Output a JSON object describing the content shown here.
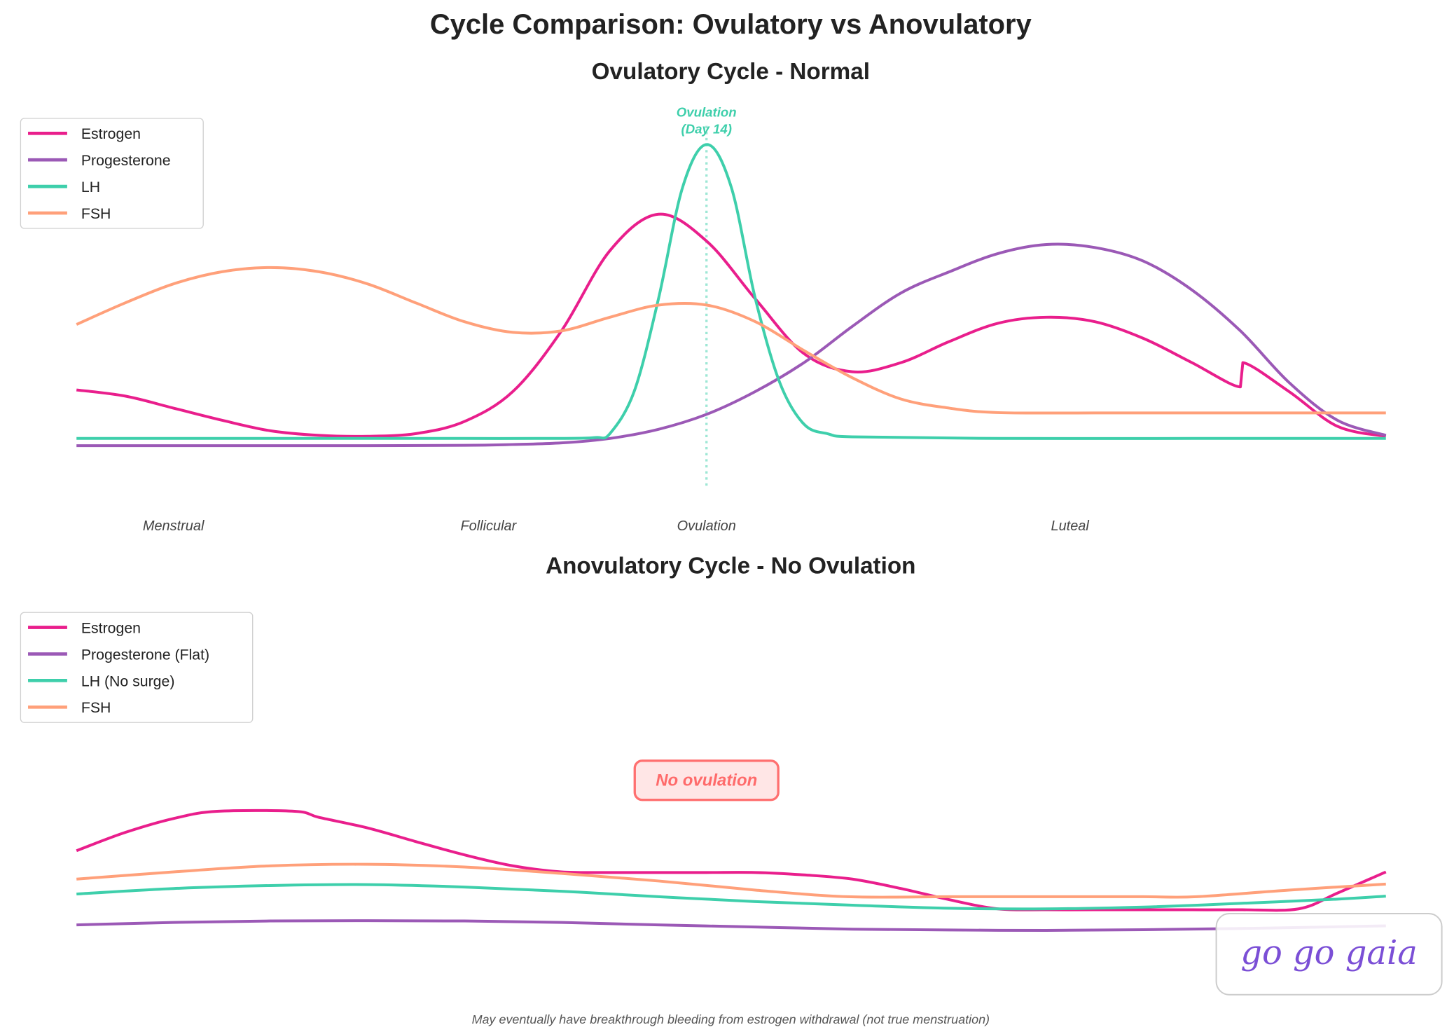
{
  "title": "Cycle Comparison: Ovulatory vs Anovulatory",
  "colors": {
    "Estrogen": "#e91e8c",
    "Progesterone": "#9b59b6",
    "LH": "#3ecfab",
    "FSH": "#ffa07a"
  },
  "chart_data": [
    {
      "type": "line",
      "title": "Ovulatory Cycle - Normal",
      "xlabel": "",
      "ylabel": "",
      "x_unit": "cycle day",
      "xlim": [
        1,
        28
      ],
      "grid": false,
      "axes_visible": false,
      "legend_position": "top-left",
      "phase_labels": [
        {
          "label": "Menstrual",
          "day": 3.5
        },
        {
          "label": "Follicular",
          "day": 9
        },
        {
          "label": "Ovulation",
          "day": 14
        },
        {
          "label": "Luteal",
          "day": 21.5
        }
      ],
      "annotation": {
        "text_line1": "Ovulation",
        "text_line2": "(Day 14)",
        "day": 14,
        "marker": "dotted vertical line"
      },
      "series": [
        {
          "name": "Estrogen",
          "color": "#e91e8c",
          "x": [
            1,
            2,
            3,
            4,
            5,
            6,
            7,
            8,
            9,
            10,
            11,
            12,
            13,
            14,
            15,
            16,
            17,
            18,
            19,
            20,
            21,
            22,
            23,
            24,
            25,
            25.05,
            26,
            27,
            28
          ],
          "y": [
            19,
            17,
            13,
            9,
            5.5,
            4,
            3.7,
            4.6,
            8.6,
            18.5,
            38.5,
            65,
            77,
            68,
            49,
            31,
            25,
            28,
            35,
            41,
            43,
            41.5,
            36,
            28,
            20,
            28,
            18.5,
            7,
            3.7
          ]
        },
        {
          "name": "Progesterone",
          "color": "#9b59b6",
          "x": [
            1,
            3,
            5,
            7,
            9,
            10,
            11,
            12,
            13,
            14,
            15,
            16,
            17,
            18,
            19,
            20,
            21,
            22,
            23,
            24,
            25,
            26,
            27,
            28
          ],
          "y": [
            0.6,
            0.6,
            0.6,
            0.6,
            0.7,
            1,
            1.5,
            3,
            6,
            11,
            18.5,
            28,
            40,
            51,
            58,
            64,
            67,
            66,
            61.5,
            52,
            38.5,
            21.5,
            9,
            4
          ]
        },
        {
          "name": "LH",
          "color": "#3ecfab",
          "x": [
            1,
            3,
            5,
            7,
            9,
            11,
            11.7,
            12,
            12.5,
            13,
            13.5,
            14,
            14.5,
            15,
            15.5,
            16,
            16.5,
            17,
            20,
            24,
            28
          ],
          "y": [
            3,
            3,
            3,
            3,
            3,
            3,
            3.3,
            4.6,
            18.5,
            49,
            86,
            100,
            86,
            49,
            21.5,
            7.7,
            4.5,
            3.5,
            3,
            3,
            3
          ]
        },
        {
          "name": "FSH",
          "color": "#ffa07a",
          "x": [
            1,
            2,
            3,
            4,
            5,
            6,
            7,
            8,
            9,
            10,
            11,
            12,
            13,
            14,
            15,
            16,
            17,
            18,
            19,
            20,
            22,
            24,
            26,
            28
          ],
          "y": [
            40.6,
            47.7,
            54,
            58,
            59.4,
            58,
            54,
            47.7,
            41.5,
            38,
            38.5,
            43,
            47,
            47,
            41.5,
            32,
            23,
            16,
            13,
            11.5,
            11.4,
            11.4,
            11.4,
            11.4
          ]
        }
      ]
    },
    {
      "type": "line",
      "title": "Anovulatory Cycle - No Ovulation",
      "xlabel": "",
      "ylabel": "",
      "x_unit": "cycle day",
      "xlim": [
        1,
        28
      ],
      "grid": false,
      "axes_visible": false,
      "legend_position": "top-left",
      "annotation": {
        "text": "No ovulation",
        "day": 14
      },
      "footnote": "May eventually have breakthrough bleeding from estrogen withdrawal (not true menstruation)",
      "series": [
        {
          "name": "Estrogen",
          "color": "#e91e8c",
          "x": [
            1,
            2,
            3,
            3.9,
            5.5,
            6,
            7,
            8,
            9,
            10,
            11,
            12,
            13,
            14,
            15,
            16,
            17,
            18,
            19,
            20,
            21,
            22,
            23,
            24,
            25,
            26.2,
            27,
            28
          ],
          "y": [
            30,
            36,
            40.6,
            43,
            43,
            41,
            37.5,
            33,
            28.6,
            25,
            23,
            22.8,
            22.8,
            22.8,
            22.8,
            22,
            20.6,
            17.5,
            13.8,
            10.8,
            10.5,
            10.5,
            10.5,
            10.5,
            10.5,
            10.8,
            16,
            23
          ]
        },
        {
          "name": "Progesterone (Flat)",
          "color": "#9b59b6",
          "x": [
            1,
            3,
            5,
            7,
            9,
            11,
            13,
            15,
            17,
            19,
            21,
            23,
            25,
            27,
            28
          ],
          "y": [
            5.5,
            6.3,
            6.8,
            6.9,
            6.8,
            6.3,
            5.5,
            4.8,
            4.1,
            3.8,
            3.7,
            3.9,
            4.3,
            4.9,
            5.2
          ]
        },
        {
          "name": "LH (No surge)",
          "color": "#3ecfab",
          "x": [
            1,
            3,
            5,
            7,
            9,
            11,
            13,
            15,
            17,
            19,
            21,
            23,
            25,
            27,
            28
          ],
          "y": [
            15.7,
            17.5,
            18.5,
            18.8,
            18,
            16.6,
            14.8,
            13.2,
            12,
            11,
            10.8,
            11.4,
            12.6,
            14,
            15
          ]
        },
        {
          "name": "FSH",
          "color": "#ffa07a",
          "x": [
            1,
            3,
            5,
            7,
            9,
            11,
            13,
            15,
            16.9,
            19,
            21,
            23,
            24.1,
            26,
            28
          ],
          "y": [
            20.6,
            23,
            25,
            25.5,
            24.6,
            22.5,
            20,
            17,
            14.8,
            14.8,
            14.8,
            14.8,
            14.8,
            17,
            19
          ]
        }
      ]
    }
  ],
  "watermark": {
    "text": "go go gaia",
    "color": "#7b4fd6"
  }
}
